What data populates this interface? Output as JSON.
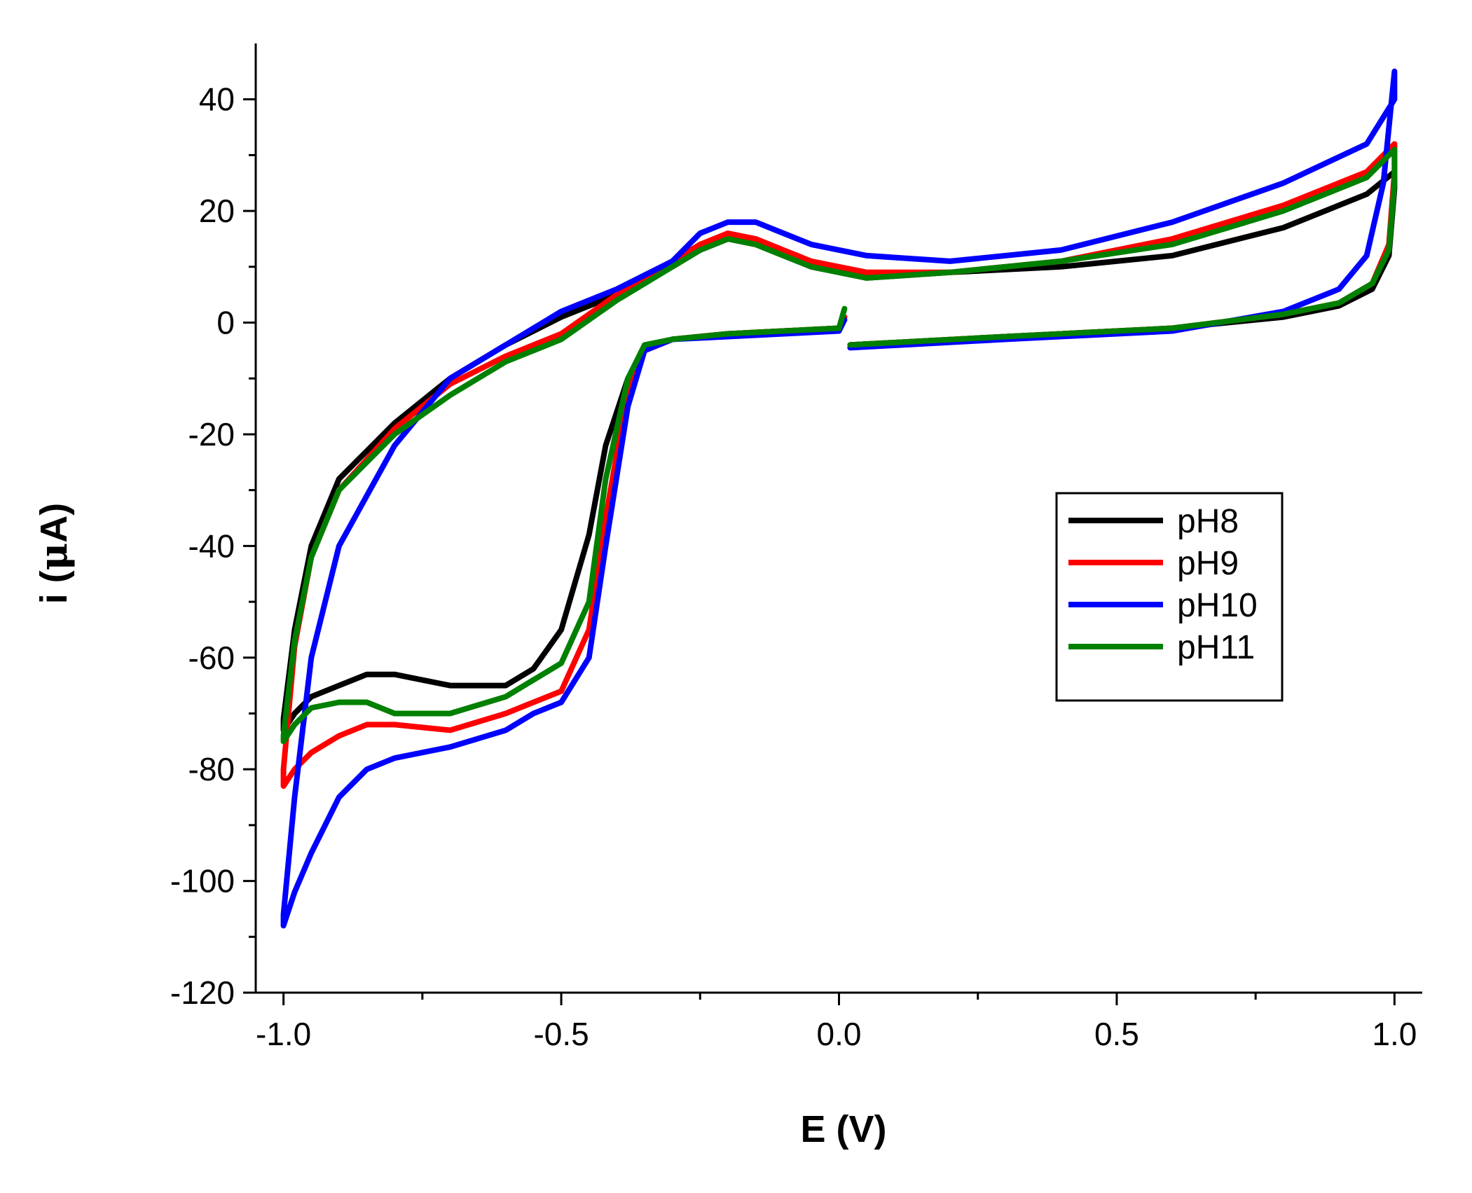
{
  "chart_data": {
    "type": "line",
    "title": "",
    "xlabel": "E (V)",
    "ylabel_prefix": "i (",
    "ylabel_mu": "μ",
    "ylabel_suffix": "A)",
    "xlim": [
      -1.05,
      1.05
    ],
    "ylim": [
      -120,
      50
    ],
    "x_ticks": [
      -1.0,
      -0.5,
      0.0,
      0.5,
      1.0
    ],
    "x_tick_labels": [
      "-1.0",
      "-0.5",
      "0.0",
      "0.5",
      "1.0"
    ],
    "y_ticks": [
      -120,
      -100,
      -80,
      -60,
      -40,
      -20,
      0,
      20,
      40
    ],
    "y_tick_labels": [
      "-120",
      "-100",
      "-80",
      "-60",
      "-40",
      "-20",
      "0",
      "20",
      "40"
    ],
    "grid": false,
    "legend_position": "right-middle",
    "series": [
      {
        "name": "pH8",
        "color": "#000000",
        "x": [
          0.02,
          0.3,
          0.6,
          0.8,
          0.9,
          0.96,
          0.99,
          1.0,
          1.0,
          0.95,
          0.8,
          0.6,
          0.4,
          0.2,
          0.05,
          -0.05,
          -0.1,
          -0.15,
          -0.2,
          -0.25,
          -0.3,
          -0.4,
          -0.5,
          -0.6,
          -0.7,
          -0.8,
          -0.9,
          -0.95,
          -0.98,
          -1.0,
          -1.0,
          -0.98,
          -0.95,
          -0.9,
          -0.85,
          -0.8,
          -0.7,
          -0.6,
          -0.55,
          -0.5,
          -0.45,
          -0.42,
          -0.38,
          -0.35,
          -0.3,
          -0.2,
          -0.1,
          0.0,
          0.01
        ],
        "y": [
          -4,
          -2.5,
          -1,
          1,
          3,
          6,
          12,
          24,
          27,
          23,
          17,
          12,
          10,
          9,
          8,
          10,
          12,
          14,
          15,
          13,
          10,
          5,
          1,
          -4,
          -10,
          -18,
          -28,
          -40,
          -55,
          -71,
          -73,
          -70,
          -67,
          -65,
          -63,
          -63,
          -65,
          -65,
          -62,
          -55,
          -38,
          -22,
          -10,
          -5,
          -3,
          -2,
          -1.5,
          -1,
          1
        ]
      },
      {
        "name": "pH9",
        "color": "#ff0000",
        "x": [
          0.02,
          0.3,
          0.6,
          0.8,
          0.9,
          0.96,
          0.99,
          1.0,
          1.0,
          0.95,
          0.8,
          0.6,
          0.4,
          0.2,
          0.05,
          -0.05,
          -0.1,
          -0.15,
          -0.2,
          -0.25,
          -0.3,
          -0.4,
          -0.5,
          -0.6,
          -0.7,
          -0.8,
          -0.9,
          -0.95,
          -0.98,
          -1.0,
          -1.0,
          -0.98,
          -0.95,
          -0.9,
          -0.85,
          -0.8,
          -0.7,
          -0.6,
          -0.55,
          -0.5,
          -0.45,
          -0.42,
          -0.38,
          -0.35,
          -0.3,
          -0.2,
          -0.1,
          0.0,
          0.01
        ],
        "y": [
          -4,
          -2.5,
          -1,
          1.5,
          3.5,
          7,
          14,
          27,
          32,
          27,
          21,
          15,
          11,
          9,
          9,
          11,
          13,
          15,
          16,
          14,
          11,
          5,
          -2,
          -6,
          -11,
          -19,
          -30,
          -42,
          -58,
          -80,
          -83,
          -80,
          -77,
          -74,
          -72,
          -72,
          -73,
          -70,
          -68,
          -66,
          -55,
          -35,
          -12,
          -5,
          -3,
          -2,
          -1.5,
          -1,
          1
        ]
      },
      {
        "name": "pH10",
        "color": "#0000ff",
        "x": [
          0.02,
          0.3,
          0.6,
          0.8,
          0.9,
          0.95,
          0.98,
          1.0,
          1.0,
          0.95,
          0.8,
          0.6,
          0.4,
          0.2,
          0.05,
          -0.05,
          -0.1,
          -0.15,
          -0.2,
          -0.25,
          -0.3,
          -0.4,
          -0.5,
          -0.6,
          -0.7,
          -0.8,
          -0.9,
          -0.95,
          -0.98,
          -1.0,
          -1.0,
          -0.98,
          -0.95,
          -0.9,
          -0.85,
          -0.8,
          -0.7,
          -0.6,
          -0.55,
          -0.5,
          -0.45,
          -0.42,
          -0.38,
          -0.35,
          -0.3,
          -0.2,
          -0.1,
          0.0,
          0.01
        ],
        "y": [
          -4.5,
          -3,
          -1.5,
          2,
          6,
          12,
          25,
          45,
          40,
          32,
          25,
          18,
          13,
          11,
          12,
          14,
          16,
          18,
          18,
          16,
          11,
          6,
          2,
          -4,
          -10,
          -22,
          -40,
          -60,
          -85,
          -106,
          -108,
          -102,
          -95,
          -85,
          -80,
          -78,
          -76,
          -73,
          -70,
          -68,
          -60,
          -40,
          -15,
          -5,
          -3,
          -2.5,
          -2,
          -1.5,
          0.5
        ]
      },
      {
        "name": "pH11",
        "color": "#008000",
        "x": [
          0.02,
          0.3,
          0.6,
          0.8,
          0.9,
          0.96,
          0.99,
          1.0,
          1.0,
          0.95,
          0.8,
          0.6,
          0.4,
          0.2,
          0.05,
          -0.05,
          -0.1,
          -0.15,
          -0.2,
          -0.25,
          -0.3,
          -0.4,
          -0.5,
          -0.6,
          -0.7,
          -0.8,
          -0.9,
          -0.95,
          -0.98,
          -1.0,
          -1.0,
          -0.98,
          -0.95,
          -0.9,
          -0.85,
          -0.8,
          -0.7,
          -0.6,
          -0.55,
          -0.5,
          -0.45,
          -0.42,
          -0.38,
          -0.35,
          -0.3,
          -0.2,
          -0.1,
          0.0,
          0.01
        ],
        "y": [
          -4,
          -2.5,
          -1,
          1.5,
          3.5,
          7,
          13,
          25,
          31,
          26,
          20,
          14,
          11,
          9,
          8,
          10,
          12,
          14,
          15,
          13,
          10,
          4,
          -3,
          -7,
          -13,
          -20,
          -30,
          -42,
          -57,
          -74,
          -75,
          -72,
          -69,
          -68,
          -68,
          -70,
          -70,
          -67,
          -64,
          -61,
          -50,
          -28,
          -10,
          -4,
          -3,
          -2,
          -1.5,
          -1,
          2.5
        ]
      }
    ]
  }
}
